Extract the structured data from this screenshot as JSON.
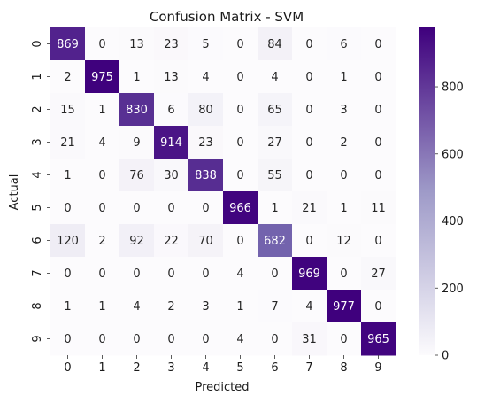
{
  "chart_data": {
    "type": "heatmap",
    "title": "Confusion Matrix - SVM",
    "xlabel": "Predicted",
    "ylabel": "Actual",
    "x_categories": [
      "0",
      "1",
      "2",
      "3",
      "4",
      "5",
      "6",
      "7",
      "8",
      "9"
    ],
    "y_categories": [
      "0",
      "1",
      "2",
      "3",
      "4",
      "5",
      "6",
      "7",
      "8",
      "9"
    ],
    "values": [
      [
        869,
        0,
        13,
        23,
        5,
        0,
        84,
        0,
        6,
        0
      ],
      [
        2,
        975,
        1,
        13,
        4,
        0,
        4,
        0,
        1,
        0
      ],
      [
        15,
        1,
        830,
        6,
        80,
        0,
        65,
        0,
        3,
        0
      ],
      [
        21,
        4,
        9,
        914,
        23,
        0,
        27,
        0,
        2,
        0
      ],
      [
        1,
        0,
        76,
        30,
        838,
        0,
        55,
        0,
        0,
        0
      ],
      [
        0,
        0,
        0,
        0,
        0,
        966,
        1,
        21,
        1,
        11
      ],
      [
        120,
        2,
        92,
        22,
        70,
        0,
        682,
        0,
        12,
        0
      ],
      [
        0,
        0,
        0,
        0,
        0,
        4,
        0,
        969,
        0,
        27
      ],
      [
        1,
        1,
        4,
        2,
        3,
        1,
        7,
        4,
        977,
        0
      ],
      [
        0,
        0,
        0,
        0,
        0,
        4,
        0,
        31,
        0,
        965
      ]
    ],
    "colorscale": {
      "name": "Purples",
      "low": "#fcfbfd",
      "high": "#3f007d"
    },
    "vmin": 0,
    "vmax": 977,
    "colorbar_ticks": [
      0,
      200,
      400,
      600,
      800
    ],
    "grid": false
  }
}
